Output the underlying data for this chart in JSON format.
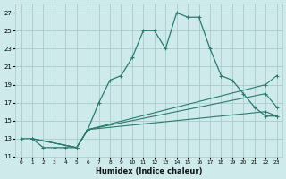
{
  "xlabel": "Humidex (Indice chaleur)",
  "bg_color": "#ceeaea",
  "grid_color": "#aacccc",
  "line_color": "#2a7a70",
  "xlim": [
    -0.5,
    23.5
  ],
  "ylim": [
    11,
    28
  ],
  "xticks": [
    0,
    1,
    2,
    3,
    4,
    5,
    6,
    7,
    8,
    9,
    10,
    11,
    12,
    13,
    14,
    15,
    16,
    17,
    18,
    19,
    20,
    21,
    22,
    23
  ],
  "yticks": [
    11,
    13,
    15,
    17,
    19,
    21,
    23,
    25,
    27
  ],
  "line1_x": [
    0,
    1,
    2,
    3,
    4,
    5,
    6,
    7,
    8,
    9,
    10,
    11,
    12,
    13,
    14,
    15,
    16,
    17,
    18,
    19,
    20,
    21,
    22,
    23
  ],
  "line1_y": [
    13,
    13,
    12,
    12,
    12,
    12,
    14,
    17,
    19.5,
    20,
    22,
    25,
    25,
    23,
    27,
    26.5,
    26.5,
    23,
    20,
    19.5,
    18,
    16.5,
    15.5,
    15.5
  ],
  "line2_x": [
    1,
    5,
    6,
    22,
    23
  ],
  "line2_y": [
    13,
    12,
    14,
    19,
    20
  ],
  "line3_x": [
    1,
    5,
    6,
    22,
    23
  ],
  "line3_y": [
    13,
    12,
    14,
    18,
    16.5
  ],
  "line4_x": [
    1,
    5,
    6,
    22,
    23
  ],
  "line4_y": [
    13,
    12,
    14,
    16,
    15.5
  ]
}
